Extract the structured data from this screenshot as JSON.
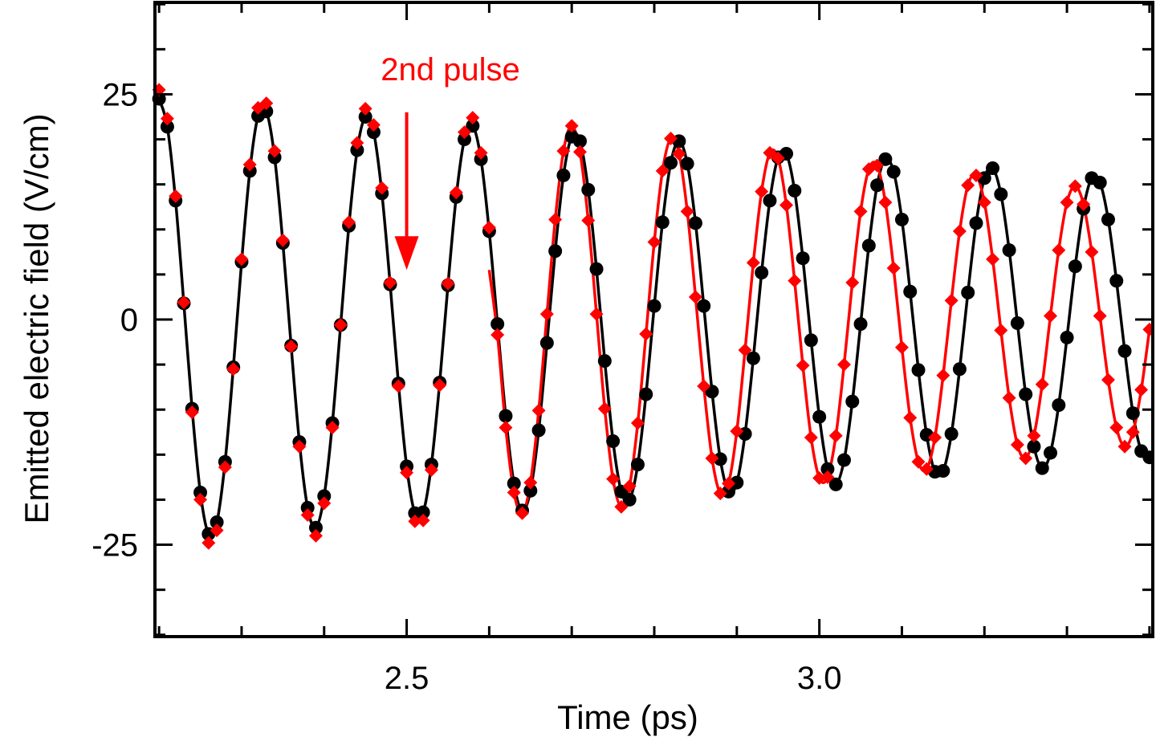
{
  "chart_data": {
    "type": "scatter",
    "title": "",
    "xlabel": "Time (ps)",
    "ylabel": "Emitted electric field (V/cm)",
    "xlim": [
      2.195,
      3.404
    ],
    "ylim": [
      -35.2,
      35.2
    ],
    "x_ticks": [
      {
        "value": 2.5,
        "label": "2.5"
      },
      {
        "value": 3.0,
        "label": "3.0"
      }
    ],
    "y_ticks": [
      {
        "value": 25,
        "label": "25"
      },
      {
        "value": 0,
        "label": "0"
      },
      {
        "value": -25,
        "label": "-25"
      }
    ],
    "x_minor_step": 0.1,
    "y_minor_step": 5,
    "grid": false,
    "colors": {
      "black_series": "#000000",
      "red_series": "#ff0000"
    },
    "annotation": {
      "text": "2nd pulse",
      "arrow_x": 2.5,
      "arrow_from_y": 23,
      "arrow_to_y": 5.5,
      "color": "#ff0000"
    },
    "x": [
      2.2,
      2.21,
      2.22,
      2.23,
      2.24,
      2.25,
      2.26,
      2.27,
      2.28,
      2.29,
      2.3,
      2.31,
      2.32,
      2.33,
      2.34,
      2.35,
      2.36,
      2.37,
      2.38,
      2.39,
      2.4,
      2.41,
      2.42,
      2.43,
      2.44,
      2.45,
      2.46,
      2.47,
      2.48,
      2.49,
      2.5,
      2.51,
      2.52,
      2.53,
      2.54,
      2.55,
      2.56,
      2.57,
      2.58,
      2.59,
      2.6,
      2.61,
      2.62,
      2.63,
      2.64,
      2.65,
      2.66,
      2.67,
      2.68,
      2.69,
      2.7,
      2.71,
      2.72,
      2.73,
      2.74,
      2.75,
      2.76,
      2.77,
      2.78,
      2.79,
      2.8,
      2.81,
      2.82,
      2.83,
      2.84,
      2.85,
      2.86,
      2.87,
      2.88,
      2.89,
      2.9,
      2.91,
      2.92,
      2.93,
      2.94,
      2.95,
      2.96,
      2.97,
      2.98,
      2.99,
      3.0,
      3.01,
      3.02,
      3.03,
      3.04,
      3.05,
      3.06,
      3.07,
      3.08,
      3.09,
      3.1,
      3.11,
      3.12,
      3.13,
      3.14,
      3.15,
      3.16,
      3.17,
      3.18,
      3.19,
      3.2,
      3.21,
      3.22,
      3.23,
      3.24,
      3.25,
      3.26,
      3.27,
      3.28,
      3.29,
      3.3,
      3.31,
      3.32,
      3.33,
      3.34,
      3.35,
      3.36,
      3.37,
      3.38,
      3.39,
      3.4
    ],
    "series": [
      {
        "style": "circles-with-line",
        "color": "#000000",
        "values": [
          24.5,
          21.4,
          13.2,
          1.8,
          -9.9,
          -19.2,
          -23.8,
          -22.5,
          -15.8,
          -5.3,
          6.4,
          16.5,
          22.6,
          23.1,
          18.0,
          8.5,
          -2.9,
          -13.6,
          -20.9,
          -23.1,
          -19.6,
          -11.5,
          -0.6,
          10.4,
          18.8,
          22.5,
          20.8,
          14.0,
          3.9,
          -7.1,
          -16.3,
          -21.5,
          -21.4,
          -16.1,
          -7.0,
          3.8,
          13.6,
          20.0,
          21.5,
          17.8,
          9.8,
          -0.5,
          -10.7,
          -18.2,
          -21.2,
          -19.0,
          -12.3,
          -2.6,
          7.6,
          16.0,
          20.3,
          19.8,
          14.4,
          5.6,
          -4.6,
          -13.5,
          -19.1,
          -20.0,
          -16.1,
          -8.3,
          1.5,
          10.8,
          17.4,
          19.8,
          17.3,
          10.7,
          1.5,
          -8.0,
          -15.5,
          -19.1,
          -18.1,
          -12.7,
          -4.3,
          5.2,
          13.2,
          18.0,
          18.4,
          14.3,
          6.8,
          -2.3,
          -10.8,
          -16.6,
          -18.3,
          -15.6,
          -9.1,
          -0.5,
          8.2,
          14.9,
          17.8,
          16.4,
          11.1,
          3.1,
          -5.6,
          -12.8,
          -16.9,
          -16.8,
          -12.7,
          -5.5,
          3.0,
          10.7,
          15.7,
          16.8,
          13.9,
          7.7,
          -0.4,
          -8.3,
          -14.1,
          -16.5,
          -14.8,
          -9.5,
          -2.0,
          5.9,
          12.3,
          15.7,
          15.2,
          11.1,
          4.3,
          -3.5,
          -10.4,
          -14.6,
          -15.3
        ]
      },
      {
        "style": "diamonds",
        "color": "#ff0000",
        "values": [
          25.5,
          22.3,
          13.7,
          1.9,
          -10.3,
          -20.0,
          -24.8,
          -23.4,
          -16.4,
          -5.5,
          6.7,
          17.2,
          23.5,
          24.0,
          18.7,
          8.8,
          -3.0,
          -14.1,
          -21.7,
          -24.0,
          -20.4,
          -12.0,
          -0.6,
          10.8,
          19.6,
          23.4,
          21.6,
          14.6,
          4.1,
          -7.4,
          -17.0,
          -22.4,
          -22.3,
          -16.7,
          -7.3,
          4.0,
          14.1,
          20.8,
          22.4,
          18.5,
          10.2,
          -1.7,
          -12.0,
          -19.2,
          -21.5,
          -18.1,
          -10.1,
          0.6,
          11.1,
          18.7,
          21.5,
          18.6,
          11.0,
          0.6,
          -9.9,
          -17.7,
          -20.8,
          -18.5,
          -11.5,
          -1.6,
          8.6,
          16.5,
          20.1,
          18.4,
          12.0,
          2.5,
          -7.4,
          -15.4,
          -19.3,
          -18.2,
          -12.4,
          -3.4,
          6.3,
          14.2,
          18.5,
          17.9,
          12.7,
          4.3,
          -5.1,
          -13.1,
          -17.6,
          -17.5,
          -12.9,
          -5.0,
          4.1,
          12.0,
          16.7,
          17.1,
          13.0,
          5.7,
          -3.1,
          -10.9,
          -15.8,
          -16.6,
          -13.1,
          -6.2,
          2.1,
          9.8,
          14.9,
          16.0,
          13.0,
          6.7,
          -1.2,
          -8.7,
          -13.9,
          -15.4,
          -12.9,
          -7.2,
          0.4,
          7.7,
          13.0,
          14.8,
          12.8,
          7.5,
          0.4,
          -6.7,
          -12.0,
          -14.1,
          -12.5,
          -7.8,
          -1.1
        ]
      }
    ],
    "red_fit": {
      "style": "line",
      "color": "#ff0000",
      "x": [
        2.6,
        2.61,
        2.62,
        2.63,
        2.64,
        2.65,
        2.66,
        2.67,
        2.68,
        2.69,
        2.7,
        2.71,
        2.72,
        2.73,
        2.74,
        2.75,
        2.76,
        2.77,
        2.78,
        2.79,
        2.8,
        2.81,
        2.82,
        2.83,
        2.84,
        2.85,
        2.86,
        2.87,
        2.88,
        2.89,
        2.9,
        2.91,
        2.92,
        2.93,
        2.94,
        2.95,
        2.96,
        2.97,
        2.98,
        2.99,
        3.0,
        3.01,
        3.02,
        3.03,
        3.04,
        3.05,
        3.06,
        3.07,
        3.08,
        3.09,
        3.1,
        3.11,
        3.12,
        3.13,
        3.14,
        3.15,
        3.16,
        3.17,
        3.18,
        3.19,
        3.2,
        3.21,
        3.22,
        3.23,
        3.24,
        3.25,
        3.26,
        3.27,
        3.28,
        3.29,
        3.3,
        3.31,
        3.32,
        3.33,
        3.34,
        3.35,
        3.36,
        3.37,
        3.38,
        3.39,
        3.4
      ],
      "values": [
        5.5,
        -1.7,
        -12.0,
        -19.2,
        -21.5,
        -18.1,
        -10.1,
        0.6,
        11.1,
        18.7,
        21.5,
        18.6,
        11.0,
        0.6,
        -9.9,
        -17.7,
        -20.8,
        -18.5,
        -11.5,
        -1.6,
        8.6,
        16.5,
        20.1,
        18.4,
        12.0,
        2.5,
        -7.4,
        -15.4,
        -19.3,
        -18.2,
        -12.4,
        -3.4,
        6.3,
        14.2,
        18.5,
        17.9,
        12.7,
        4.3,
        -5.1,
        -13.1,
        -17.6,
        -17.5,
        -12.9,
        -5.0,
        4.1,
        12.0,
        16.7,
        17.1,
        13.0,
        5.7,
        -3.1,
        -10.9,
        -15.8,
        -16.6,
        -13.1,
        -6.2,
        2.1,
        9.8,
        14.9,
        16.0,
        13.0,
        6.7,
        -1.2,
        -8.7,
        -13.9,
        -15.4,
        -12.9,
        -7.2,
        0.4,
        7.7,
        13.0,
        14.8,
        12.8,
        7.5,
        0.4,
        -6.7,
        -12.0,
        -14.1,
        -12.5,
        -7.8,
        -1.1
      ]
    }
  }
}
